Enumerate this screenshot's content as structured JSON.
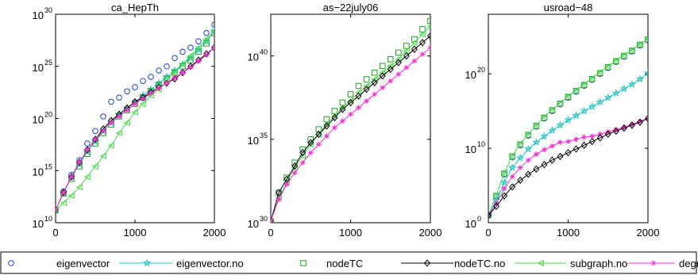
{
  "legend": [
    {
      "label": "eigenvector",
      "color": "#1f3fd6",
      "marker": "circle",
      "line": false
    },
    {
      "label": "eigenvector.no",
      "color": "#17c4c4",
      "marker": "star",
      "line": true
    },
    {
      "label": "nodeTC",
      "color": "#20a020",
      "marker": "square",
      "line": false
    },
    {
      "label": "nodeTC.no",
      "color": "#000000",
      "marker": "diamond",
      "line": true
    },
    {
      "label": "subgraph.no",
      "color": "#3ee03e",
      "marker": "triangle-left",
      "line": true
    },
    {
      "label": "degree",
      "color": "#ff2bd6",
      "marker": "asterisk",
      "line": true
    }
  ],
  "chart_data": [
    {
      "type": "line",
      "title": "ca_HepTh",
      "xlabel": "",
      "ylabel": "",
      "xlim": [
        0,
        2000
      ],
      "ylim_log10": [
        10,
        30
      ],
      "yscale": "log",
      "xticks": [
        "0",
        "1000",
        "2000"
      ],
      "yticks": [
        {
          "base": "10",
          "exp": "10"
        },
        {
          "base": "10",
          "exp": "15"
        },
        {
          "base": "10",
          "exp": "20"
        },
        {
          "base": "10",
          "exp": "25"
        },
        {
          "base": "10",
          "exp": "30"
        }
      ],
      "x": [
        0,
        100,
        200,
        300,
        400,
        500,
        600,
        700,
        800,
        900,
        1000,
        1100,
        1200,
        1300,
        1400,
        1500,
        1600,
        1700,
        1800,
        1900,
        2000
      ],
      "series_log10": [
        {
          "ref": "eigenvector",
          "values": [
            11.2,
            13.0,
            14.6,
            16.0,
            17.6,
            18.8,
            20.2,
            21.6,
            22.0,
            22.6,
            23.0,
            23.6,
            24.0,
            24.6,
            25.0,
            25.8,
            26.4,
            26.8,
            27.4,
            28.2,
            29.0
          ]
        },
        {
          "ref": "eigenvector.no",
          "values": [
            11.2,
            12.9,
            14.4,
            15.6,
            16.8,
            17.8,
            18.8,
            19.6,
            20.4,
            21.0,
            21.6,
            22.2,
            22.8,
            23.4,
            24.0,
            24.6,
            25.2,
            25.8,
            26.6,
            27.4,
            28.4
          ]
        },
        {
          "ref": "nodeTC",
          "values": [
            11.2,
            12.8,
            14.2,
            15.4,
            16.6,
            17.6,
            18.6,
            19.4,
            20.2,
            20.8,
            21.4,
            22.0,
            22.6,
            23.2,
            23.8,
            24.4,
            25.0,
            25.6,
            26.4,
            27.2,
            28.2
          ]
        },
        {
          "ref": "nodeTC.no",
          "values": [
            11.2,
            12.9,
            14.4,
            15.8,
            17.0,
            18.0,
            19.0,
            19.8,
            20.4,
            21.0,
            21.6,
            22.0,
            22.5,
            23.0,
            23.4,
            23.8,
            24.4,
            25.0,
            25.6,
            26.2,
            26.8
          ]
        },
        {
          "ref": "subgraph.no",
          "values": [
            11.2,
            11.9,
            12.6,
            13.4,
            14.4,
            15.4,
            16.4,
            17.4,
            18.6,
            19.6,
            20.6,
            21.4,
            22.2,
            22.8,
            23.6,
            24.4,
            25.2,
            26.0,
            26.8,
            27.6,
            28.4
          ]
        },
        {
          "ref": "degree",
          "values": [
            11.2,
            12.9,
            14.4,
            15.8,
            17.0,
            18.0,
            18.8,
            19.6,
            20.2,
            20.8,
            21.4,
            21.9,
            22.4,
            22.9,
            23.4,
            23.9,
            24.4,
            24.9,
            25.5,
            26.1,
            26.8
          ]
        }
      ]
    },
    {
      "type": "line",
      "title": "as−22july06",
      "xlabel": "",
      "ylabel": "",
      "xlim": [
        0,
        2000
      ],
      "ylim_log10": [
        30,
        42.5
      ],
      "yscale": "log",
      "xticks": [
        "0",
        "1000",
        "2000"
      ],
      "yticks": [
        {
          "base": "10",
          "exp": "30"
        },
        {
          "base": "10",
          "exp": "35"
        },
        {
          "base": "10",
          "exp": "40"
        }
      ],
      "x": [
        0,
        100,
        200,
        300,
        400,
        500,
        600,
        700,
        800,
        900,
        1000,
        1100,
        1200,
        1300,
        1400,
        1500,
        1600,
        1700,
        1800,
        1900,
        2000
      ],
      "series_log10": [
        {
          "ref": "nodeTC",
          "values": [
            30.1,
            31.8,
            32.7,
            33.6,
            34.4,
            35.0,
            35.6,
            36.2,
            36.7,
            37.2,
            37.7,
            38.2,
            38.6,
            39.0,
            39.4,
            39.8,
            40.2,
            40.6,
            41.0,
            41.6,
            42.1
          ]
        },
        {
          "ref": "subgraph.no",
          "values": [
            30.1,
            31.5,
            32.4,
            33.3,
            34.0,
            34.7,
            35.3,
            35.9,
            36.4,
            36.9,
            37.3,
            37.8,
            38.2,
            38.6,
            39.0,
            39.4,
            39.8,
            40.3,
            40.8,
            41.3,
            41.8
          ]
        },
        {
          "ref": "nodeTC.no",
          "values": [
            30.1,
            31.8,
            32.6,
            33.4,
            34.2,
            34.8,
            35.3,
            35.8,
            36.3,
            36.8,
            37.2,
            37.6,
            38.0,
            38.4,
            38.8,
            39.2,
            39.6,
            40.0,
            40.4,
            40.8,
            41.2
          ]
        },
        {
          "ref": "degree",
          "values": [
            30.1,
            31.4,
            32.3,
            33.0,
            33.6,
            34.2,
            34.7,
            35.2,
            35.7,
            36.1,
            36.5,
            36.9,
            37.3,
            37.7,
            38.1,
            38.5,
            38.9,
            39.3,
            39.7,
            40.1,
            40.5
          ]
        }
      ]
    },
    {
      "type": "line",
      "title": "usroad−48",
      "xlabel": "",
      "ylabel": "",
      "xlim": [
        0,
        2000
      ],
      "ylim_log10": [
        0,
        28
      ],
      "yscale": "log",
      "xticks": [
        "0",
        "1000",
        "2000"
      ],
      "yticks": [
        {
          "base": "10",
          "exp": "0"
        },
        {
          "base": "10",
          "exp": "10"
        },
        {
          "base": "10",
          "exp": "20"
        }
      ],
      "x": [
        0,
        100,
        200,
        300,
        400,
        500,
        600,
        700,
        800,
        900,
        1000,
        1100,
        1200,
        1300,
        1400,
        1500,
        1600,
        1700,
        1800,
        1900,
        2000
      ],
      "series_log10": [
        {
          "ref": "eigenvector",
          "values": [
            1.0,
            3.5,
            6.5,
            8.8,
            10.4,
            11.7,
            12.9,
            14.0,
            15.0,
            15.9,
            16.8,
            17.6,
            18.4,
            19.2,
            20.0,
            20.8,
            21.6,
            22.3,
            23.0,
            23.8,
            24.5
          ]
        },
        {
          "ref": "nodeTC",
          "values": [
            1.0,
            3.6,
            6.6,
            8.9,
            10.5,
            11.8,
            13.0,
            14.1,
            15.1,
            16.0,
            16.9,
            17.7,
            18.5,
            19.3,
            20.1,
            20.9,
            21.7,
            22.4,
            23.1,
            23.9,
            24.6
          ]
        },
        {
          "ref": "subgraph.no",
          "values": [
            1.0,
            3.7,
            6.7,
            9.0,
            10.6,
            11.9,
            13.1,
            14.2,
            15.2,
            16.1,
            17.0,
            17.8,
            18.6,
            19.4,
            20.2,
            21.0,
            21.8,
            22.5,
            23.2,
            24.0,
            24.7
          ]
        },
        {
          "ref": "eigenvector.no",
          "values": [
            1.0,
            3.0,
            5.4,
            7.4,
            8.7,
            9.9,
            10.8,
            11.6,
            12.4,
            13.1,
            13.8,
            14.4,
            15.0,
            15.6,
            16.2,
            16.8,
            17.4,
            18.0,
            18.6,
            19.3,
            20.1
          ]
        },
        {
          "ref": "degree",
          "values": [
            1.0,
            2.6,
            4.6,
            6.2,
            7.4,
            8.4,
            9.2,
            9.8,
            10.3,
            10.8,
            10.9,
            11.2,
            11.5,
            11.6,
            11.9,
            12.2,
            12.5,
            12.8,
            13.2,
            13.6,
            14.0
          ]
        },
        {
          "ref": "nodeTC.no",
          "values": [
            1.0,
            2.2,
            3.6,
            4.8,
            5.7,
            6.5,
            7.2,
            7.8,
            8.4,
            8.9,
            9.4,
            9.9,
            10.4,
            10.9,
            11.4,
            11.9,
            12.3,
            12.7,
            13.1,
            13.5,
            14.0
          ]
        }
      ]
    }
  ]
}
